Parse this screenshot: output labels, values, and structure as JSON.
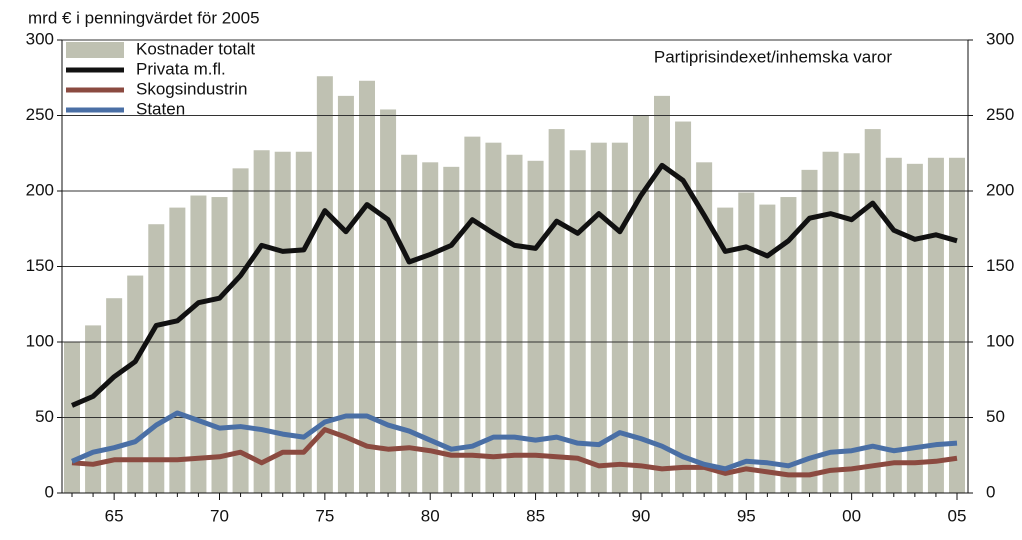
{
  "chart_data": {
    "type": "bar",
    "y_label": "mrd € i penningvärdet för 2005",
    "annotation": "Partiprisindexet/inhemska varor",
    "categories": [
      null,
      null,
      "65",
      null,
      null,
      null,
      null,
      "70",
      null,
      null,
      null,
      null,
      "75",
      null,
      null,
      null,
      null,
      "80",
      null,
      null,
      null,
      null,
      "85",
      null,
      null,
      null,
      null,
      "90",
      null,
      null,
      null,
      null,
      "95",
      null,
      null,
      null,
      null,
      "00",
      null,
      null,
      null,
      null,
      "05"
    ],
    "series": [
      {
        "name": "Kostnader totalt",
        "type": "bar",
        "color": "#bfc1b2",
        "values": [
          100,
          111,
          129,
          144,
          178,
          189,
          197,
          196,
          215,
          227,
          226,
          226,
          276,
          263,
          273,
          254,
          224,
          219,
          216,
          236,
          232,
          224,
          220,
          241,
          227,
          232,
          232,
          250,
          263,
          246,
          219,
          189,
          199,
          191,
          196,
          214,
          226,
          225,
          241,
          222,
          218,
          222,
          222
        ]
      },
      {
        "name": "Privata m.fl.",
        "type": "line",
        "color": "#111111",
        "values": [
          58,
          64,
          77,
          87,
          111,
          114,
          126,
          129,
          144,
          164,
          160,
          161,
          187,
          173,
          191,
          181,
          153,
          158,
          164,
          181,
          172,
          164,
          162,
          180,
          172,
          185,
          173,
          197,
          217,
          207,
          184,
          160,
          163,
          157,
          167,
          182,
          185,
          181,
          192,
          174,
          168,
          171,
          167
        ]
      },
      {
        "name": "Skogsindustrin",
        "type": "line",
        "color": "#8b4a40",
        "values": [
          20,
          19,
          22,
          22,
          22,
          22,
          23,
          24,
          27,
          20,
          27,
          27,
          42,
          37,
          31,
          29,
          30,
          28,
          25,
          25,
          24,
          25,
          25,
          24,
          23,
          18,
          19,
          18,
          16,
          17,
          17,
          13,
          16,
          14,
          12,
          12,
          15,
          16,
          18,
          20,
          20,
          21,
          23
        ]
      },
      {
        "name": "Staten",
        "type": "line",
        "color": "#4a6fa5",
        "values": [
          21,
          27,
          30,
          34,
          45,
          53,
          48,
          43,
          44,
          42,
          39,
          37,
          47,
          51,
          51,
          45,
          41,
          35,
          29,
          31,
          37,
          37,
          35,
          37,
          33,
          32,
          40,
          36,
          31,
          24,
          19,
          16,
          21,
          20,
          18,
          23,
          27,
          28,
          31,
          28,
          30,
          32,
          33
        ]
      }
    ],
    "ylim": [
      0,
      300
    ],
    "yticks": [
      0,
      50,
      100,
      150,
      200,
      250,
      300
    ],
    "y2lim": [
      0,
      300
    ],
    "y2ticks": [
      0,
      50,
      100,
      150,
      200,
      250,
      300
    ],
    "grid": true
  }
}
